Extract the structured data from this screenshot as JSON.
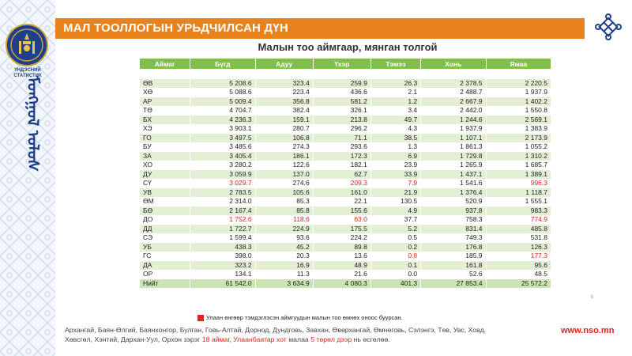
{
  "header": {
    "title": "МАЛ  ТООЛЛОГЫН УРЬДЧИЛСАН ДҮН"
  },
  "brand": {
    "logo_caption": "ҮНДЭСНИЙ СТАТИСТИК",
    "script_text": "ᠮᠣᠩᠭᠣᠯ ᠤᠯᠤᠰ",
    "accent": "#e8821c",
    "table_header": "#7fbf4d",
    "highlight": "#e0241c",
    "logo_icon": "soyombo-emblem-icon",
    "knot_icon": "endless-knot-icon"
  },
  "table": {
    "title": "Малын тоо аймгаар, мянган толгой",
    "headers": [
      "Аймаг",
      "Бүгд",
      "Адуу",
      "Үхэр",
      "Тэмээ",
      "Хонь",
      "Ямаа"
    ],
    "rows": [
      [
        "",
        "",
        "",
        "",
        "",
        "",
        ""
      ],
      [
        "ӨВ",
        "5 208.6",
        "323.4",
        "259.9",
        "26.3",
        "2 378.5",
        "2 220.5"
      ],
      [
        "ХӨ",
        "5 088.6",
        "223.4",
        "436.6",
        "2.1",
        "2 488.7",
        "1 937.9"
      ],
      [
        "АР",
        "5 009.4",
        "356.8",
        "581.2",
        "1.2",
        "2 667.9",
        "1 402.2"
      ],
      [
        "ТӨ",
        "4 704.7",
        "382.4",
        "326.1",
        "3.4",
        "2 442.0",
        "1 550.8"
      ],
      [
        "БХ",
        "4 236.3",
        "159.1",
        "213.8",
        "49.7",
        "1 244.6",
        "2 569.1"
      ],
      [
        "ХЭ",
        "3 903.1",
        "280.7",
        "296.2",
        "4.3",
        "1 937.9",
        "1 383.9"
      ],
      [
        "ГО",
        "3 497.5",
        "106.8",
        "71.1",
        "38.5",
        "1 107.1",
        "2 173.9"
      ],
      [
        "БУ",
        "3 485.6",
        "274.3",
        "293.6",
        "1.3",
        "1 861.3",
        "1 055.2"
      ],
      [
        "ЗА",
        "3 405.4",
        "186.1",
        "172.3",
        "6.9",
        "1 729.8",
        "1 310.2"
      ],
      [
        "ХО",
        "3 280.2",
        "122.6",
        "182.1",
        "23.9",
        "1 265.9",
        "1 685.7"
      ],
      [
        "ДУ",
        "3 059.9",
        "137.0",
        "62.7",
        "33.9",
        "1 437.1",
        "1 389.1"
      ],
      [
        "СҮ",
        "3 029.7",
        "274.6",
        "209.3",
        "7.9",
        "1 541.6",
        "996.3"
      ],
      [
        "УВ",
        "2 783.5",
        "105.6",
        "161.0",
        "21.9",
        "1 376.4",
        "1 118.7"
      ],
      [
        "ӨМ",
        "2 314.0",
        "85.3",
        "22.1",
        "130.5",
        "520.9",
        "1 555.1"
      ],
      [
        "БӨ",
        "2 167.4",
        "85.8",
        "155.6",
        "4.9",
        "937.8",
        "983.3"
      ],
      [
        "ДО",
        "1 752.6",
        "118.6",
        "63.0",
        "37.7",
        "758.3",
        "774.9"
      ],
      [
        "ДД",
        "1 722.7",
        "224.9",
        "175.5",
        "5.2",
        "831.4",
        "485.8"
      ],
      [
        "СЭ",
        "1 599.4",
        "93.6",
        "224.2",
        "0.5",
        "749.3",
        "531.8"
      ],
      [
        "УБ",
        "438.3",
        "45.2",
        "89.8",
        "0.2",
        "176.8",
        "126.3"
      ],
      [
        "ГС",
        "398.0",
        "20.3",
        "13.6",
        "0.8",
        "185.9",
        "177.3"
      ],
      [
        "ДА",
        "323.2",
        "16.9",
        "48.9",
        "0.1",
        "161.8",
        "95.6"
      ],
      [
        "ОР",
        "134.1",
        "11.3",
        "21.6",
        "0.0",
        "52.6",
        "48.5"
      ],
      [
        "Нийт",
        "61 542.0",
        "3 634.9",
        "4 080.3",
        "401.3",
        "27 853.4",
        "25 572.2"
      ]
    ],
    "red_cells": [
      [
        12,
        1
      ],
      [
        12,
        3
      ],
      [
        12,
        4
      ],
      [
        12,
        6
      ],
      [
        16,
        1
      ],
      [
        16,
        2
      ],
      [
        16,
        3
      ],
      [
        16,
        6
      ],
      [
        20,
        4
      ],
      [
        20,
        6
      ]
    ]
  },
  "legend": {
    "text": "Улаан өнгөөр тэмдэглэсэн аймгуудын малын тоо өмнөх оноос буурсан."
  },
  "footer": {
    "line1": "Архангай, Баян-Өлгий, Баянхонгор, Булган, Говь-Алтай, Дорнод, Дундговь, Завхан, Өвөрхангай, Өмнөговь, Сэлэнгэ, Төв, Увс, Ховд,",
    "line2_a": "Хөвсгөл, Хэнтий, Дархан-Уул, Орхон зэрэг ",
    "line2_b": "18 аймаг, Улаанбаатар хот",
    "line2_c": " малаа ",
    "line2_d": "5 төрөл дээр",
    "line2_e": " нь өсгөлөө.",
    "site": "www.nso.mn"
  },
  "page_number": "6"
}
